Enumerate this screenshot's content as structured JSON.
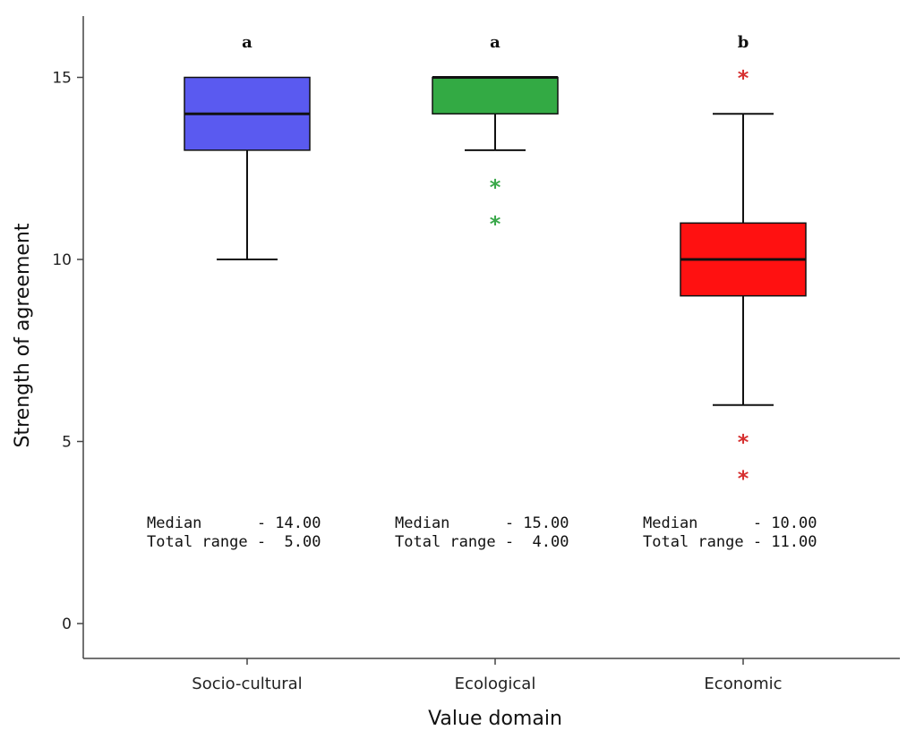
{
  "chart_data": {
    "type": "box",
    "xlabel": "Value domain",
    "ylabel": "Strength of agreement",
    "ylim": [
      0,
      15
    ],
    "yticks": [
      0,
      5,
      10,
      15
    ],
    "grid": false,
    "categories": [
      "Socio-cultural",
      "Ecological",
      "Economic"
    ],
    "groups": [
      {
        "category": "Socio-cultural",
        "color": "#5a5af0",
        "q1": 13,
        "median": 14,
        "q3": 15,
        "whisker_low": 10,
        "whisker_high": 15,
        "outliers": [],
        "outlier_color": "#5a5af0",
        "letter": "a",
        "annot_line1": "Median      - 14.00",
        "annot_line2": "Total range -  5.00"
      },
      {
        "category": "Ecological",
        "color": "#33aa44",
        "q1": 14,
        "median": 15,
        "q3": 15,
        "whisker_low": 13,
        "whisker_high": 15,
        "outliers": [
          12,
          11
        ],
        "outlier_color": "#3aa84a",
        "letter": "a",
        "annot_line1": "Median      - 15.00",
        "annot_line2": "Total range -  4.00"
      },
      {
        "category": "Economic",
        "color": "#ff1111",
        "q1": 9,
        "median": 10,
        "q3": 11,
        "whisker_low": 6,
        "whisker_high": 14,
        "outliers": [
          15,
          5,
          4
        ],
        "outlier_color": "#d63030",
        "letter": "b",
        "annot_line1": "Median      - 10.00",
        "annot_line2": "Total range - 11.00"
      }
    ]
  }
}
